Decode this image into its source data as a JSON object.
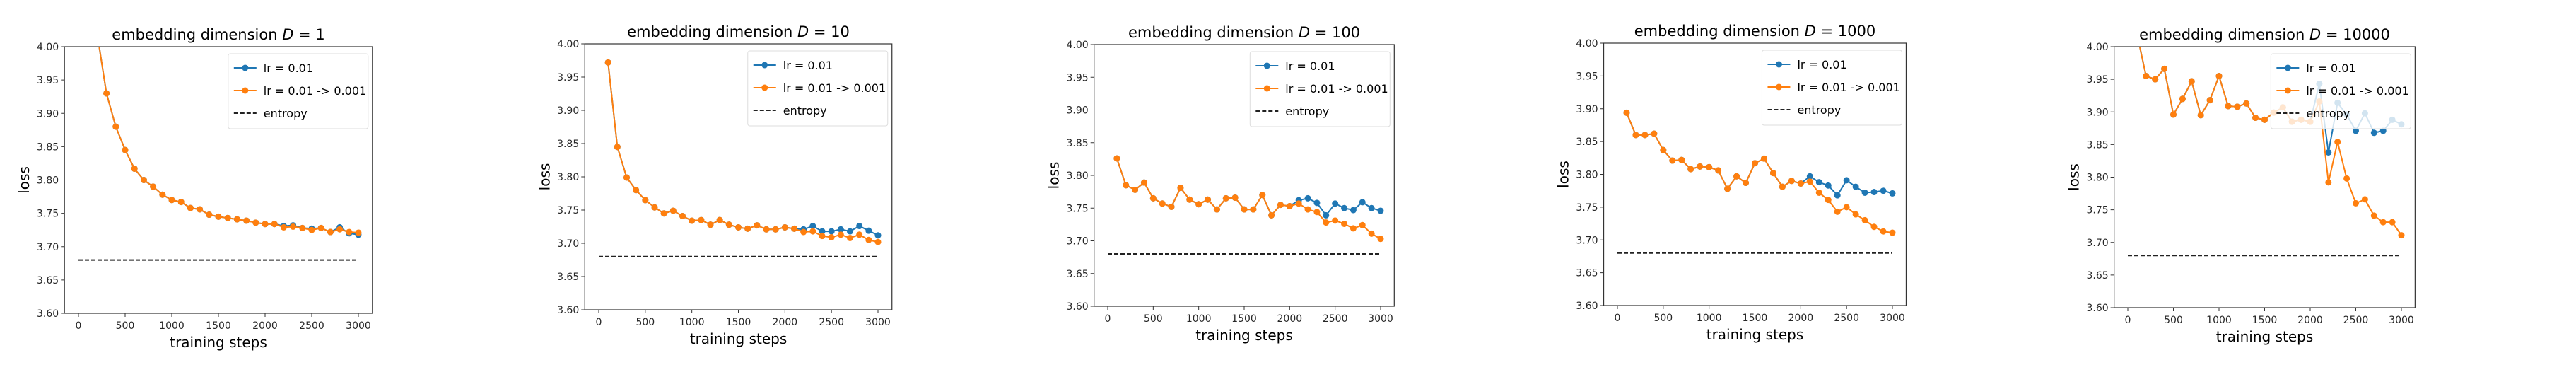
{
  "chart_data": [
    {
      "type": "line",
      "title": "embedding dimension D = 1",
      "title_prefix": "embedding dimension ",
      "title_var": "D",
      "title_suffix": " = 1",
      "xlabel": "training steps",
      "ylabel": "loss",
      "xlim": [
        -150,
        3150
      ],
      "ylim": [
        3.6,
        4.0
      ],
      "xticks": [
        0,
        500,
        1000,
        1500,
        2000,
        2500,
        3000
      ],
      "yticks": [
        "3.60",
        "3.65",
        "3.70",
        "3.75",
        "3.80",
        "3.85",
        "3.90",
        "3.95",
        "4.00"
      ],
      "grid": false,
      "legend_position": "upper-right",
      "x": [
        0,
        100,
        200,
        300,
        400,
        500,
        600,
        700,
        800,
        900,
        1000,
        1100,
        1200,
        1300,
        1400,
        1500,
        1600,
        1700,
        1800,
        1900,
        2000,
        2100,
        2200,
        2300,
        2400,
        2500,
        2600,
        2700,
        2800,
        2900,
        3000
      ],
      "series": [
        {
          "name": "lr = 0.01",
          "color": "#1f77b4",
          "values": [
            null,
            null,
            4.02,
            3.93,
            3.88,
            3.845,
            3.817,
            3.8,
            3.79,
            3.778,
            3.77,
            3.767,
            3.758,
            3.756,
            3.748,
            3.745,
            3.743,
            3.741,
            3.739,
            3.736,
            3.734,
            3.734,
            3.731,
            3.732,
            3.728,
            3.727,
            3.728,
            3.722,
            3.729,
            3.72,
            3.718
          ]
        },
        {
          "name": "lr = 0.01 -> 0.001",
          "color": "#ff7f0e",
          "values": [
            null,
            null,
            4.02,
            3.93,
            3.88,
            3.845,
            3.817,
            3.8,
            3.79,
            3.778,
            3.77,
            3.767,
            3.758,
            3.756,
            3.748,
            3.745,
            3.743,
            3.741,
            3.739,
            3.736,
            3.734,
            3.734,
            3.729,
            3.73,
            3.728,
            3.725,
            3.728,
            3.722,
            3.726,
            3.722,
            3.721
          ]
        },
        {
          "name": "entropy",
          "color": "#000000",
          "style": "dashed",
          "values": [
            3.68,
            3.68
          ],
          "x": [
            0,
            3000
          ]
        }
      ]
    },
    {
      "type": "line",
      "title": "embedding dimension D = 10",
      "title_prefix": "embedding dimension ",
      "title_var": "D",
      "title_suffix": " = 10",
      "xlabel": "training steps",
      "ylabel": "loss",
      "xlim": [
        -150,
        3150
      ],
      "ylim": [
        3.6,
        4.0
      ],
      "xticks": [
        0,
        500,
        1000,
        1500,
        2000,
        2500,
        3000
      ],
      "yticks": [
        "3.60",
        "3.65",
        "3.70",
        "3.75",
        "3.80",
        "3.85",
        "3.90",
        "3.95",
        "4.00"
      ],
      "grid": false,
      "legend_position": "upper-right",
      "x": [
        0,
        100,
        200,
        300,
        400,
        500,
        600,
        700,
        800,
        900,
        1000,
        1100,
        1200,
        1300,
        1400,
        1500,
        1600,
        1700,
        1800,
        1900,
        2000,
        2100,
        2200,
        2300,
        2400,
        2500,
        2600,
        2700,
        2800,
        2900,
        3000
      ],
      "series": [
        {
          "name": "lr = 0.01",
          "color": "#1f77b4",
          "values": [
            null,
            3.972,
            3.845,
            3.799,
            3.78,
            3.765,
            3.754,
            3.745,
            3.749,
            3.741,
            3.734,
            3.735,
            3.728,
            3.735,
            3.728,
            3.724,
            3.722,
            3.727,
            3.721,
            3.721,
            3.724,
            3.722,
            3.721,
            3.726,
            3.718,
            3.718,
            3.721,
            3.718,
            3.726,
            3.719,
            3.712
          ]
        },
        {
          "name": "lr = 0.01 -> 0.001",
          "color": "#ff7f0e",
          "values": [
            null,
            3.972,
            3.845,
            3.799,
            3.78,
            3.765,
            3.754,
            3.745,
            3.749,
            3.741,
            3.734,
            3.735,
            3.728,
            3.735,
            3.728,
            3.724,
            3.722,
            3.727,
            3.721,
            3.721,
            3.724,
            3.722,
            3.717,
            3.718,
            3.711,
            3.709,
            3.713,
            3.708,
            3.713,
            3.705,
            3.702
          ]
        },
        {
          "name": "entropy",
          "color": "#000000",
          "style": "dashed",
          "values": [
            3.68,
            3.68
          ],
          "x": [
            0,
            3000
          ]
        }
      ]
    },
    {
      "type": "line",
      "title": "embedding dimension D = 100",
      "title_prefix": "embedding dimension ",
      "title_var": "D",
      "title_suffix": " = 100",
      "xlabel": "training steps",
      "ylabel": "loss",
      "xlim": [
        -150,
        3150
      ],
      "ylim": [
        3.6,
        4.0
      ],
      "xticks": [
        0,
        500,
        1000,
        1500,
        2000,
        2500,
        3000
      ],
      "yticks": [
        "3.60",
        "3.65",
        "3.70",
        "3.75",
        "3.80",
        "3.85",
        "3.90",
        "3.95",
        "4.00"
      ],
      "grid": false,
      "legend_position": "upper-right",
      "x": [
        0,
        100,
        200,
        300,
        400,
        500,
        600,
        700,
        800,
        900,
        1000,
        1100,
        1200,
        1300,
        1400,
        1500,
        1600,
        1700,
        1800,
        1900,
        2000,
        2100,
        2200,
        2300,
        2400,
        2500,
        2600,
        2700,
        2800,
        2900,
        3000
      ],
      "series": [
        {
          "name": "lr = 0.01",
          "color": "#1f77b4",
          "values": [
            null,
            3.826,
            3.785,
            3.778,
            3.789,
            3.765,
            3.757,
            3.752,
            3.781,
            3.763,
            3.756,
            3.763,
            3.748,
            3.765,
            3.766,
            3.748,
            3.748,
            3.77,
            3.739,
            3.755,
            3.753,
            3.762,
            3.765,
            3.758,
            3.739,
            3.757,
            3.75,
            3.747,
            3.759,
            3.75,
            3.746
          ]
        },
        {
          "name": "lr = 0.01 -> 0.001",
          "color": "#ff7f0e",
          "values": [
            null,
            3.826,
            3.785,
            3.778,
            3.789,
            3.765,
            3.757,
            3.752,
            3.781,
            3.763,
            3.756,
            3.763,
            3.748,
            3.765,
            3.766,
            3.748,
            3.748,
            3.77,
            3.739,
            3.755,
            3.753,
            3.757,
            3.748,
            3.744,
            3.728,
            3.731,
            3.726,
            3.719,
            3.724,
            3.711,
            3.703
          ]
        },
        {
          "name": "entropy",
          "color": "#000000",
          "style": "dashed",
          "values": [
            3.68,
            3.68
          ],
          "x": [
            0,
            3000
          ]
        }
      ]
    },
    {
      "type": "line",
      "title": "embedding dimension D = 1000",
      "title_prefix": "embedding dimension ",
      "title_var": "D",
      "title_suffix": " = 1000",
      "xlabel": "training steps",
      "ylabel": "loss",
      "xlim": [
        -150,
        3150
      ],
      "ylim": [
        3.6,
        4.0
      ],
      "xticks": [
        0,
        500,
        1000,
        1500,
        2000,
        2500,
        3000
      ],
      "yticks": [
        "3.60",
        "3.65",
        "3.70",
        "3.75",
        "3.80",
        "3.85",
        "3.90",
        "3.95",
        "4.00"
      ],
      "grid": false,
      "legend_position": "upper-right",
      "x": [
        0,
        100,
        200,
        300,
        400,
        500,
        600,
        700,
        800,
        900,
        1000,
        1100,
        1200,
        1300,
        1400,
        1500,
        1600,
        1700,
        1800,
        1900,
        2000,
        2100,
        2200,
        2300,
        2400,
        2500,
        2600,
        2700,
        2800,
        2900,
        3000
      ],
      "series": [
        {
          "name": "lr = 0.01",
          "color": "#1f77b4",
          "values": [
            null,
            3.894,
            3.86,
            3.86,
            3.862,
            3.837,
            3.821,
            3.822,
            3.808,
            3.812,
            3.811,
            3.806,
            3.778,
            3.797,
            3.787,
            3.817,
            3.824,
            3.802,
            3.781,
            3.79,
            3.786,
            3.797,
            3.788,
            3.783,
            3.768,
            3.791,
            3.781,
            3.772,
            3.773,
            3.775,
            3.771
          ]
        },
        {
          "name": "lr = 0.01 -> 0.001",
          "color": "#ff7f0e",
          "values": [
            null,
            3.894,
            3.86,
            3.86,
            3.862,
            3.837,
            3.821,
            3.822,
            3.808,
            3.812,
            3.811,
            3.806,
            3.778,
            3.797,
            3.787,
            3.817,
            3.824,
            3.802,
            3.781,
            3.79,
            3.786,
            3.789,
            3.772,
            3.761,
            3.743,
            3.75,
            3.739,
            3.73,
            3.72,
            3.713,
            3.711
          ]
        },
        {
          "name": "entropy",
          "color": "#000000",
          "style": "dashed",
          "values": [
            3.68,
            3.68
          ],
          "x": [
            0,
            3000
          ]
        }
      ]
    },
    {
      "type": "line",
      "title": "embedding dimension D = 10000",
      "title_prefix": "embedding dimension ",
      "title_var": "D",
      "title_suffix": " = 10000",
      "xlabel": "training steps",
      "ylabel": "loss",
      "xlim": [
        -150,
        3150
      ],
      "ylim": [
        3.6,
        4.0
      ],
      "xticks": [
        0,
        500,
        1000,
        1500,
        2000,
        2500,
        3000
      ],
      "yticks": [
        "3.60",
        "3.65",
        "3.70",
        "3.75",
        "3.80",
        "3.85",
        "3.90",
        "3.95",
        "4.00"
      ],
      "grid": false,
      "legend_position": "upper-right",
      "x": [
        0,
        100,
        200,
        300,
        400,
        500,
        600,
        700,
        800,
        900,
        1000,
        1100,
        1200,
        1300,
        1400,
        1500,
        1600,
        1700,
        1800,
        1900,
        2000,
        2100,
        2200,
        2300,
        2400,
        2500,
        2600,
        2700,
        2800,
        2900,
        3000
      ],
      "series": [
        {
          "name": "lr = 0.01",
          "color": "#1f77b4",
          "values": [
            null,
            4.02,
            3.955,
            3.95,
            3.966,
            3.896,
            3.92,
            3.947,
            3.895,
            3.918,
            3.955,
            3.909,
            3.908,
            3.913,
            3.891,
            3.888,
            3.899,
            3.907,
            3.885,
            3.888,
            3.885,
            3.943,
            3.838,
            3.914,
            3.896,
            3.871,
            3.898,
            3.868,
            3.871,
            3.888,
            3.881
          ]
        },
        {
          "name": "lr = 0.01 -> 0.001",
          "color": "#ff7f0e",
          "values": [
            null,
            4.02,
            3.955,
            3.95,
            3.966,
            3.896,
            3.92,
            3.947,
            3.895,
            3.918,
            3.955,
            3.909,
            3.908,
            3.913,
            3.891,
            3.888,
            3.899,
            3.907,
            3.885,
            3.888,
            3.885,
            3.916,
            3.792,
            3.854,
            3.798,
            3.76,
            3.766,
            3.741,
            3.731,
            3.731,
            3.711
          ]
        },
        {
          "name": "entropy",
          "color": "#000000",
          "style": "dashed",
          "values": [
            3.68,
            3.68
          ],
          "x": [
            0,
            3000
          ]
        }
      ]
    }
  ]
}
